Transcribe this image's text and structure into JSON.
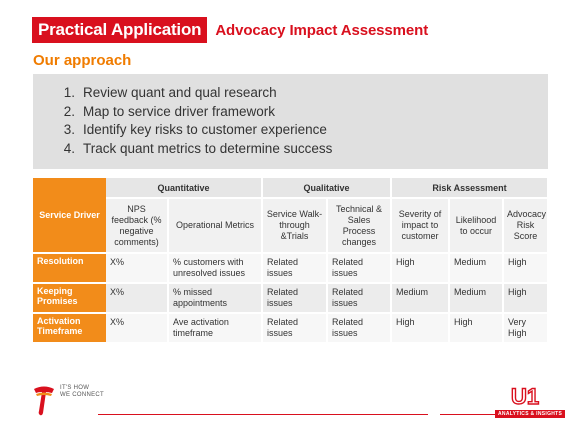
{
  "header": {
    "title": "Practical Application",
    "subtitle": "Advocacy Impact Assessment"
  },
  "approach": {
    "heading": "Our approach",
    "steps": [
      {
        "num": "1.",
        "text": "Review quant and qual research"
      },
      {
        "num": "2.",
        "text": "Map to service driver framework"
      },
      {
        "num": "3.",
        "text": "Identify key risks to customer experience"
      },
      {
        "num": "4.",
        "text": "Track quant metrics to determine success"
      }
    ]
  },
  "table": {
    "groups": [
      "Quantitative",
      "Qualitative",
      "Risk Assessment"
    ],
    "service_driver_label": "Service Driver",
    "columns": [
      "NPS feedback (% negative comments)",
      "Operational Metrics",
      "Service Walk-through &Trials",
      "Technical & Sales Process changes",
      "Severity of impact to customer",
      "Likelihood to occur",
      "Advocacy Risk Score"
    ],
    "rows": [
      {
        "label": "Resolution",
        "cells": [
          "X%",
          "% customers with unresolved issues",
          "Related issues",
          "Related issues",
          "High",
          "Medium",
          "High"
        ]
      },
      {
        "label": "Keeping Promises",
        "cells": [
          "X%",
          "% missed appointments",
          "Related issues",
          "Related issues",
          "Medium",
          "Medium",
          "High"
        ]
      },
      {
        "label": "Activation Timeframe",
        "cells": [
          "X%",
          "Ave activation timeframe",
          "Related issues",
          "Related issues",
          "High",
          "High",
          "Very High"
        ]
      }
    ]
  },
  "footer": {
    "tagline_line1": "IT'S HOW",
    "tagline_line2": "WE CONNECT",
    "u1_text": "U1",
    "u1_tag": "ANALYTICS & INSIGHTS"
  },
  "colors": {
    "brand_red": "#d9101e",
    "orange": "#f28c1a",
    "gray_box": "#e0e0e0"
  }
}
